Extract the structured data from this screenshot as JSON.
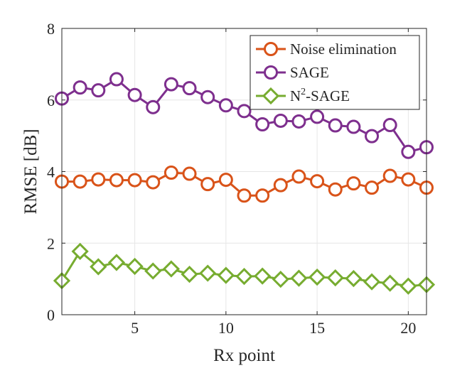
{
  "chart_data": {
    "type": "line",
    "title": "",
    "xlabel": "Rx point",
    "ylabel": "RMSE [dB]",
    "xlim": [
      1,
      21
    ],
    "ylim": [
      0,
      8
    ],
    "xticks": [
      5,
      10,
      15,
      20
    ],
    "yticks": [
      0,
      2,
      4,
      6,
      8
    ],
    "grid": true,
    "legend_position": "top-right",
    "x": [
      1,
      2,
      3,
      4,
      5,
      6,
      7,
      8,
      9,
      10,
      11,
      12,
      13,
      14,
      15,
      16,
      17,
      18,
      19,
      20,
      21
    ],
    "series": [
      {
        "name": "Noise elimination",
        "legend_label_base": "Noise elimination",
        "legend_label_sup": "",
        "legend_label_rest": "",
        "color": "#D95319",
        "marker": "circle",
        "values": [
          3.72,
          3.72,
          3.78,
          3.76,
          3.76,
          3.7,
          3.97,
          3.94,
          3.65,
          3.77,
          3.33,
          3.33,
          3.62,
          3.86,
          3.73,
          3.5,
          3.67,
          3.55,
          3.88,
          3.78,
          3.55
        ]
      },
      {
        "name": "SAGE",
        "legend_label_base": "SAGE",
        "legend_label_sup": "",
        "legend_label_rest": "",
        "color": "#7E2F8E",
        "marker": "circle",
        "values": [
          6.04,
          6.35,
          6.27,
          6.58,
          6.14,
          5.8,
          6.44,
          6.33,
          6.08,
          5.85,
          5.69,
          5.32,
          5.42,
          5.4,
          5.53,
          5.29,
          5.25,
          4.99,
          5.3,
          4.55,
          4.68
        ]
      },
      {
        "name": "N2-SAGE",
        "legend_label_base": "N",
        "legend_label_sup": "2",
        "legend_label_rest": "-SAGE",
        "color": "#77AC30",
        "marker": "diamond",
        "values": [
          0.95,
          1.77,
          1.34,
          1.46,
          1.35,
          1.22,
          1.28,
          1.13,
          1.16,
          1.1,
          1.07,
          1.08,
          0.99,
          1.02,
          1.05,
          1.03,
          1.01,
          0.92,
          0.88,
          0.8,
          0.84
        ]
      }
    ]
  }
}
